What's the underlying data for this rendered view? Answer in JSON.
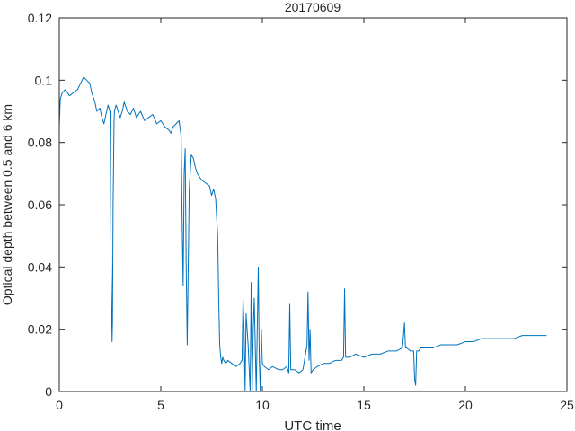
{
  "chart_data": {
    "type": "line",
    "title": "20170609",
    "xlabel": "UTC time",
    "ylabel": "Optical depth between 0.5 and 6 km",
    "xlim": [
      0,
      25
    ],
    "ylim": [
      0,
      0.12
    ],
    "xticks": [
      0,
      5,
      10,
      15,
      20,
      25
    ],
    "xtick_labels": [
      "0",
      "5",
      "10",
      "15",
      "20",
      "25"
    ],
    "yticks": [
      0,
      0.02,
      0.04,
      0.06,
      0.08,
      0.1,
      0.12
    ],
    "ytick_labels": [
      "0",
      "0.02",
      "0.04",
      "0.06",
      "0.08",
      "0.1",
      "0.12"
    ],
    "grid": false,
    "line_color": "#0072BD",
    "series": [
      {
        "x": [
          0,
          0.05,
          0.15,
          0.3,
          0.5,
          0.7,
          0.9,
          1.05,
          1.2,
          1.35,
          1.5,
          1.6,
          1.75,
          1.85,
          2.0,
          2.1,
          2.2,
          2.3,
          2.4,
          2.5,
          2.55,
          2.6,
          2.62,
          2.65,
          2.7,
          2.72,
          2.75,
          2.8,
          2.9,
          3.0,
          3.1,
          3.2,
          3.35,
          3.5,
          3.65,
          3.8,
          4.0,
          4.2,
          4.4,
          4.6,
          4.8,
          5.0,
          5.2,
          5.4,
          5.5,
          5.6,
          5.75,
          5.9,
          6.0,
          6.05,
          6.1,
          6.15,
          6.2,
          6.25,
          6.3,
          6.4,
          6.5,
          6.6,
          6.7,
          6.8,
          7.0,
          7.2,
          7.4,
          7.5,
          7.6,
          7.7,
          7.8,
          7.85,
          7.9,
          7.95,
          8.0,
          8.05,
          8.1,
          8.2,
          8.3,
          8.5,
          8.7,
          8.9,
          9.0,
          9.05,
          9.1,
          9.15,
          9.2,
          9.3,
          9.4,
          9.45,
          9.5,
          9.55,
          9.6,
          9.7,
          9.8,
          9.85,
          9.9,
          9.95,
          10.0,
          10.1,
          10.3,
          10.5,
          10.8,
          11.0,
          11.2,
          11.3,
          11.35,
          11.4,
          11.6,
          11.8,
          12.0,
          12.2,
          12.25,
          12.3,
          12.35,
          12.4,
          12.5,
          12.7,
          13.0,
          13.3,
          13.6,
          13.9,
          14.0,
          14.05,
          14.1,
          14.3,
          14.6,
          15.0,
          15.4,
          15.8,
          16.2,
          16.6,
          16.9,
          17.0,
          17.05,
          17.1,
          17.3,
          17.45,
          17.5,
          17.55,
          17.6,
          17.7,
          17.8,
          18.0,
          18.4,
          18.8,
          19.2,
          19.6,
          20.0,
          20.4,
          20.8,
          21.2,
          21.6,
          22.0,
          22.4,
          22.8,
          23.2,
          23.6,
          24.0
        ],
        "y": [
          0.085,
          0.094,
          0.096,
          0.097,
          0.095,
          0.096,
          0.097,
          0.099,
          0.101,
          0.1,
          0.099,
          0.096,
          0.093,
          0.09,
          0.091,
          0.088,
          0.086,
          0.089,
          0.092,
          0.09,
          0.04,
          0.016,
          0.022,
          0.06,
          0.088,
          0.09,
          0.091,
          0.092,
          0.09,
          0.088,
          0.09,
          0.093,
          0.09,
          0.089,
          0.091,
          0.088,
          0.09,
          0.087,
          0.088,
          0.089,
          0.086,
          0.087,
          0.085,
          0.084,
          0.083,
          0.085,
          0.086,
          0.087,
          0.082,
          0.055,
          0.034,
          0.07,
          0.078,
          0.04,
          0.015,
          0.065,
          0.076,
          0.075,
          0.072,
          0.07,
          0.068,
          0.067,
          0.066,
          0.063,
          0.065,
          0.062,
          0.05,
          0.03,
          0.015,
          0.011,
          0.009,
          0.011,
          0.01,
          0.009,
          0.01,
          0.009,
          0.008,
          0.009,
          0.01,
          0.03,
          0.02,
          0.0,
          0.025,
          0.015,
          0.0,
          0.035,
          0.0,
          0.02,
          0.03,
          0.0,
          0.04,
          0.01,
          0.0,
          0.02,
          0.009,
          0.008,
          0.007,
          0.008,
          0.007,
          0.007,
          0.008,
          0.006,
          0.028,
          0.007,
          0.007,
          0.006,
          0.007,
          0.015,
          0.032,
          0.01,
          0.02,
          0.006,
          0.007,
          0.008,
          0.009,
          0.009,
          0.01,
          0.01,
          0.011,
          0.033,
          0.011,
          0.011,
          0.012,
          0.011,
          0.012,
          0.012,
          0.013,
          0.013,
          0.014,
          0.022,
          0.014,
          0.014,
          0.013,
          0.013,
          0.004,
          0.002,
          0.013,
          0.013,
          0.014,
          0.014,
          0.014,
          0.015,
          0.015,
          0.015,
          0.016,
          0.016,
          0.017,
          0.017,
          0.017,
          0.017,
          0.017,
          0.018,
          0.018,
          0.018,
          0.018
        ]
      }
    ]
  }
}
